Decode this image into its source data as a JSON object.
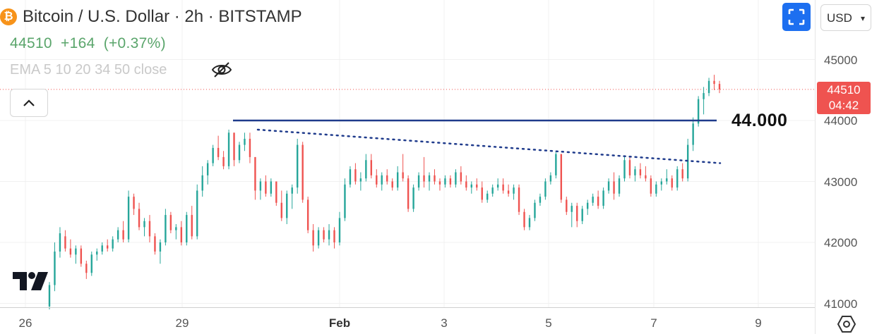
{
  "header": {
    "coin_symbol": "₿",
    "title": "Bitcoin / U.S. Dollar · 2h · BITSTAMP",
    "price": "44510",
    "change": "+164",
    "change_pct": "(+0.37%)",
    "indicator": "EMA 5 10 20 34 50 close",
    "price_color": "#5aa56b"
  },
  "controls": {
    "currency": "USD",
    "fullscreen_icon": "fullscreen-icon",
    "eye_icon": "eye-off-icon",
    "collapse_icon": "chevron-up-icon",
    "settings_icon": "settings-icon"
  },
  "last_price": {
    "value": "44510",
    "countdown": "04:42",
    "color": "#ef5350"
  },
  "annotation": {
    "label": "44.000"
  },
  "chart_data": {
    "type": "candlestick",
    "ylim": [
      41000,
      45500
    ],
    "y_ticks": [
      "45000",
      "44000",
      "43000",
      "42000",
      "41000"
    ],
    "x_ticks": [
      "26",
      "29",
      "Feb",
      "3",
      "5",
      "7",
      "9"
    ],
    "up_color": "#26a69a",
    "down_color": "#ef5350",
    "horizontal_level": {
      "value": 44000,
      "color": "#1f3b8c",
      "style": "solid"
    },
    "trendline": {
      "from": 43850,
      "to": 43300,
      "color": "#1f3b8c",
      "style": "dotted"
    },
    "last_price_line": 44510,
    "candles": [
      [
        40950,
        41350,
        40900,
        41300
      ],
      [
        41300,
        42000,
        41200,
        41850
      ],
      [
        41850,
        42250,
        41750,
        42150
      ],
      [
        42100,
        42200,
        41850,
        41900
      ],
      [
        41900,
        42050,
        41750,
        41800
      ],
      [
        41800,
        41950,
        41650,
        41900
      ],
      [
        41900,
        41950,
        41600,
        41650
      ],
      [
        41650,
        41700,
        41400,
        41500
      ],
      [
        41500,
        41850,
        41450,
        41800
      ],
      [
        41800,
        41900,
        41700,
        41850
      ],
      [
        41850,
        42000,
        41800,
        41950
      ],
      [
        41950,
        42050,
        41850,
        41900
      ],
      [
        41900,
        42100,
        41850,
        42050
      ],
      [
        42050,
        42250,
        42000,
        42200
      ],
      [
        42200,
        42350,
        42000,
        42050
      ],
      [
        42050,
        42850,
        42000,
        42750
      ],
      [
        42750,
        42800,
        42450,
        42550
      ],
      [
        42550,
        42650,
        42200,
        42250
      ],
      [
        42250,
        42400,
        42100,
        42350
      ],
      [
        42350,
        42450,
        42000,
        42100
      ],
      [
        42100,
        42150,
        41800,
        41850
      ],
      [
        41850,
        42050,
        41650,
        42000
      ],
      [
        42000,
        42550,
        41950,
        42450
      ],
      [
        42450,
        42500,
        42150,
        42200
      ],
      [
        42200,
        42300,
        42050,
        42250
      ],
      [
        42250,
        42350,
        41950,
        42000
      ],
      [
        42000,
        42500,
        41950,
        42450
      ],
      [
        42450,
        42600,
        42050,
        42100
      ],
      [
        42100,
        42950,
        42050,
        42850
      ],
      [
        42850,
        43250,
        42750,
        43100
      ],
      [
        43100,
        43350,
        42950,
        43300
      ],
      [
        43300,
        43600,
        43250,
        43550
      ],
      [
        43550,
        43750,
        43350,
        43400
      ],
      [
        43400,
        43500,
        43200,
        43250
      ],
      [
        43250,
        43850,
        43200,
        43800
      ],
      [
        43800,
        43800,
        43250,
        43350
      ],
      [
        43350,
        43650,
        43300,
        43600
      ],
      [
        43600,
        43800,
        43500,
        43700
      ],
      [
        43700,
        43800,
        43300,
        43400
      ],
      [
        43400,
        43400,
        42700,
        42850
      ],
      [
        42850,
        43050,
        42700,
        43000
      ],
      [
        43000,
        43100,
        42750,
        42800
      ],
      [
        42800,
        43050,
        42750,
        43000
      ],
      [
        43000,
        43000,
        42600,
        42650
      ],
      [
        42650,
        42850,
        42350,
        42400
      ],
      [
        42400,
        42850,
        42300,
        42800
      ],
      [
        42800,
        42950,
        42550,
        42900
      ],
      [
        42900,
        43700,
        42800,
        43600
      ],
      [
        43600,
        43650,
        42650,
        42700
      ],
      [
        42700,
        42750,
        42150,
        42200
      ],
      [
        42200,
        42300,
        41850,
        41950
      ],
      [
        41950,
        42250,
        41900,
        42200
      ],
      [
        42200,
        42250,
        42000,
        42050
      ],
      [
        42050,
        42300,
        41950,
        42200
      ],
      [
        42200,
        42250,
        41900,
        42000
      ],
      [
        42000,
        42500,
        41950,
        42400
      ],
      [
        42400,
        43050,
        42350,
        42950
      ],
      [
        42950,
        43250,
        42900,
        43200
      ],
      [
        43200,
        43300,
        42950,
        43000
      ],
      [
        43000,
        43150,
        42850,
        43050
      ],
      [
        43050,
        43450,
        43000,
        43350
      ],
      [
        43350,
        43450,
        43050,
        43100
      ],
      [
        43100,
        43200,
        42900,
        42950
      ],
      [
        42950,
        43150,
        42850,
        43100
      ],
      [
        43100,
        43200,
        42950,
        43000
      ],
      [
        43000,
        43050,
        42850,
        42900
      ],
      [
        42900,
        43250,
        42850,
        43150
      ],
      [
        43150,
        43450,
        43000,
        43050
      ],
      [
        43050,
        43100,
        42500,
        42550
      ],
      [
        42550,
        42950,
        42500,
        42900
      ],
      [
        42900,
        43150,
        42850,
        43100
      ],
      [
        43100,
        43400,
        42900,
        43000
      ],
      [
        43000,
        43150,
        42850,
        43100
      ],
      [
        43100,
        43200,
        42950,
        43000
      ],
      [
        43000,
        43050,
        42850,
        42950
      ],
      [
        42950,
        43100,
        42900,
        43050
      ],
      [
        43050,
        43100,
        42900,
        42950
      ],
      [
        42950,
        43200,
        42900,
        43150
      ],
      [
        43150,
        43250,
        42950,
        43000
      ],
      [
        43000,
        43100,
        42850,
        42900
      ],
      [
        42900,
        43000,
        42800,
        42950
      ],
      [
        42950,
        43050,
        42850,
        42900
      ],
      [
        42900,
        43000,
        42650,
        42700
      ],
      [
        42700,
        42850,
        42650,
        42800
      ],
      [
        42800,
        42950,
        42750,
        42900
      ],
      [
        42900,
        43050,
        42850,
        42950
      ],
      [
        42950,
        43050,
        42800,
        42850
      ],
      [
        42850,
        42950,
        42750,
        42800
      ],
      [
        42800,
        42950,
        42700,
        42900
      ],
      [
        42900,
        42950,
        42450,
        42500
      ],
      [
        42500,
        42550,
        42200,
        42250
      ],
      [
        42250,
        42450,
        42200,
        42400
      ],
      [
        42400,
        42700,
        42350,
        42650
      ],
      [
        42650,
        42800,
        42600,
        42750
      ],
      [
        42750,
        43050,
        42700,
        43000
      ],
      [
        43000,
        43150,
        42950,
        43100
      ],
      [
        43100,
        43500,
        43050,
        43450
      ],
      [
        43450,
        43450,
        42650,
        42700
      ],
      [
        42700,
        42750,
        42450,
        42500
      ],
      [
        42500,
        42650,
        42250,
        42600
      ],
      [
        42600,
        42650,
        42250,
        42350
      ],
      [
        42350,
        42600,
        42300,
        42550
      ],
      [
        42550,
        42700,
        42450,
        42650
      ],
      [
        42650,
        42800,
        42600,
        42750
      ],
      [
        42750,
        42850,
        42550,
        42600
      ],
      [
        42600,
        42900,
        42550,
        42850
      ],
      [
        42850,
        43050,
        42800,
        43000
      ],
      [
        43000,
        43150,
        42700,
        42800
      ],
      [
        42800,
        43100,
        42750,
        43050
      ],
      [
        43050,
        43400,
        43000,
        43350
      ],
      [
        43350,
        43400,
        43050,
        43100
      ],
      [
        43100,
        43250,
        43000,
        43200
      ],
      [
        43200,
        43300,
        43050,
        43100
      ],
      [
        43100,
        43250,
        43000,
        43050
      ],
      [
        43050,
        43100,
        42750,
        42800
      ],
      [
        42800,
        43000,
        42750,
        42950
      ],
      [
        42950,
        43050,
        42850,
        43000
      ],
      [
        43000,
        43200,
        42950,
        43050
      ],
      [
        43050,
        43100,
        42850,
        42900
      ],
      [
        42900,
        43250,
        42850,
        43200
      ],
      [
        43200,
        43300,
        43000,
        43050
      ],
      [
        43050,
        43700,
        43000,
        43600
      ],
      [
        43600,
        44050,
        43500,
        43950
      ],
      [
        43950,
        44400,
        43900,
        44350
      ],
      [
        44350,
        44550,
        44100,
        44450
      ],
      [
        44450,
        44700,
        44400,
        44650
      ],
      [
        44650,
        44750,
        44500,
        44600
      ],
      [
        44600,
        44650,
        44450,
        44510
      ]
    ]
  }
}
